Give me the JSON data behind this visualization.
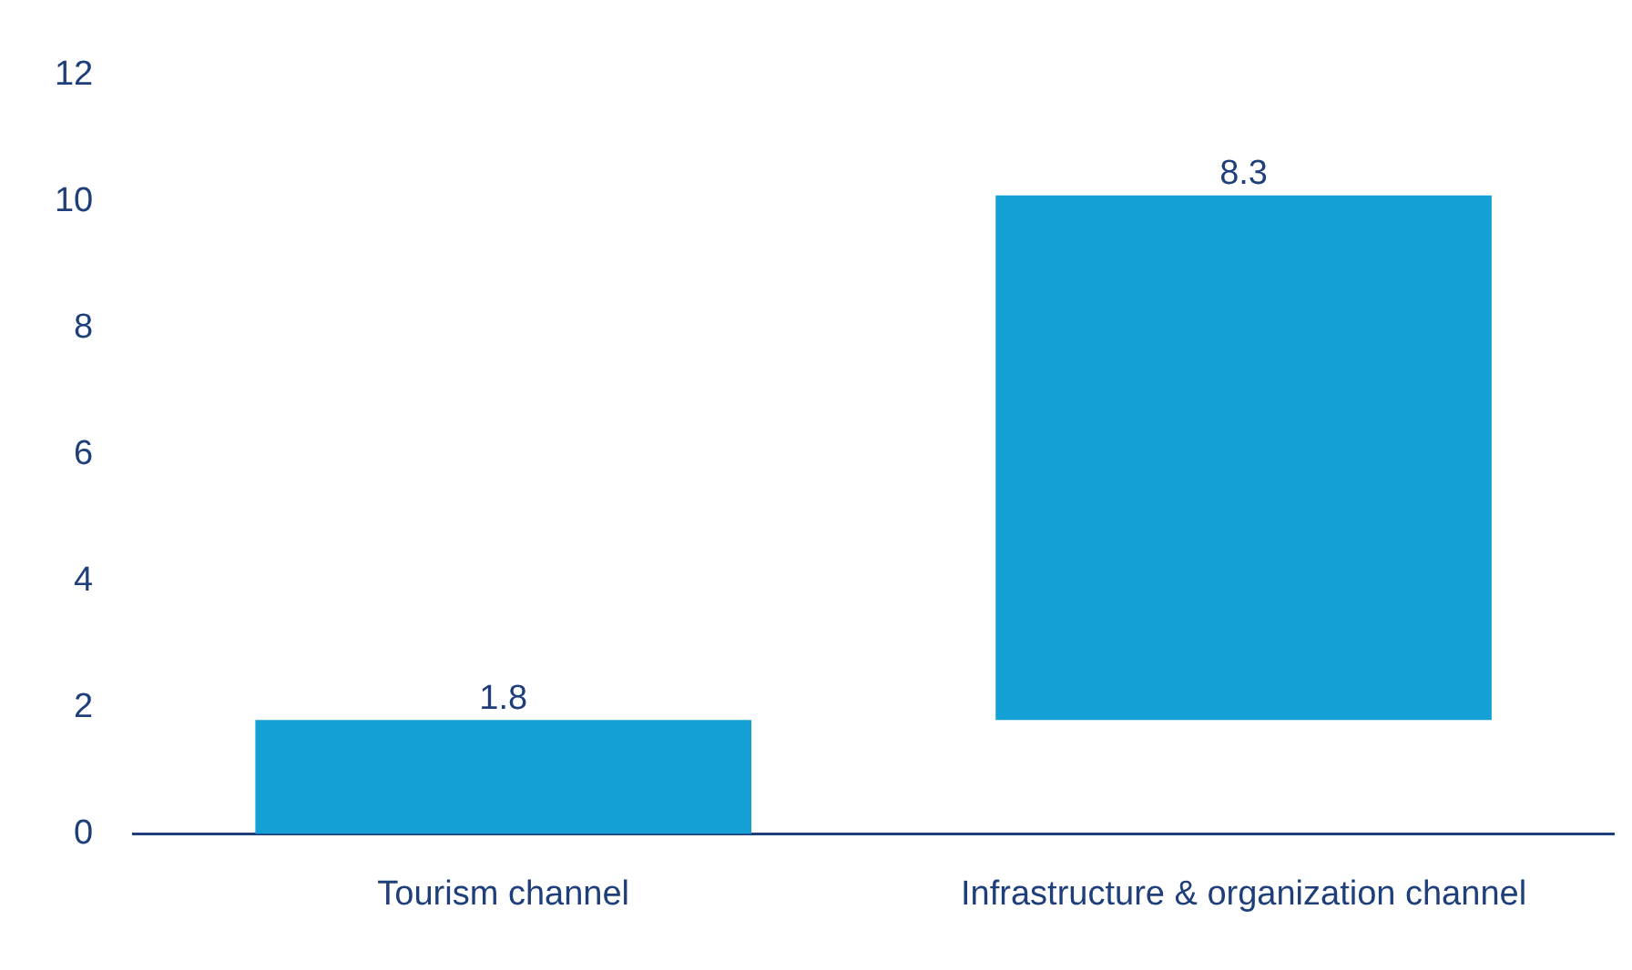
{
  "chart_data": {
    "type": "bar",
    "categories": [
      "Tourism channel",
      "Infrastructure & organization channel"
    ],
    "values": [
      1.8,
      8.3
    ],
    "base": [
      0,
      1.8
    ],
    "color": "#14a0d4",
    "data_labels": true,
    "grid": false,
    "legend": false,
    "ylim": [
      0,
      12
    ],
    "yticks": [
      0,
      2,
      4,
      6,
      8,
      10,
      12
    ]
  }
}
